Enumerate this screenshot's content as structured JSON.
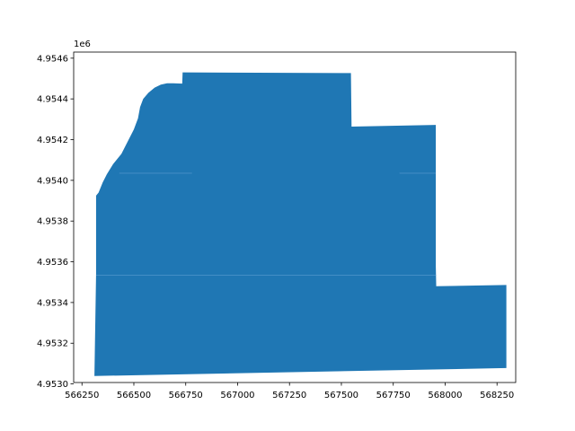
{
  "chart_data": {
    "type": "area",
    "title": "",
    "xlabel": "",
    "ylabel": "",
    "xlim": [
      566210,
      568340
    ],
    "ylim": [
      4953007,
      4954630
    ],
    "y_offset_label": "1e6",
    "y_tick_scale": 1000000,
    "xticks": [
      566250,
      566500,
      566750,
      567000,
      567250,
      567500,
      567750,
      568000,
      568250
    ],
    "yticks": [
      4953000,
      4953200,
      4953400,
      4953600,
      4953800,
      4954000,
      4954200,
      4954400,
      4954600
    ],
    "xtick_labels": [
      "566250",
      "566500",
      "566750",
      "567000",
      "567250",
      "567500",
      "567750",
      "568000",
      "568250"
    ],
    "ytick_labels": [
      "4.9530",
      "4.9532",
      "4.9534",
      "4.9536",
      "4.9538",
      "4.9540",
      "4.9542",
      "4.9544",
      "4.9546"
    ],
    "fill_color": "#1f77b4",
    "grid": false,
    "series": [
      {
        "values": [
          [
            566310,
            4953039
          ],
          [
            568295,
            4953078
          ],
          [
            568295,
            4953486
          ],
          [
            567957,
            4953480
          ],
          [
            567955,
            4953578
          ],
          [
            567955,
            4954272
          ],
          [
            567549,
            4954264
          ],
          [
            567546,
            4954527
          ],
          [
            566735,
            4954530
          ],
          [
            566733,
            4954475
          ],
          [
            566690,
            4954477
          ],
          [
            566660,
            4954477
          ],
          [
            566630,
            4954470
          ],
          [
            566600,
            4954455
          ],
          [
            566570,
            4954430
          ],
          [
            566545,
            4954400
          ],
          [
            566530,
            4954360
          ],
          [
            566520,
            4954305
          ],
          [
            566500,
            4954250
          ],
          [
            566470,
            4954190
          ],
          [
            566440,
            4954130
          ],
          [
            566400,
            4954080
          ],
          [
            566370,
            4954030
          ],
          [
            566350,
            4953990
          ],
          [
            566330,
            4953940
          ],
          [
            566318,
            4953925
          ],
          [
            566318,
            4953540
          ]
        ]
      }
    ],
    "internal_edges": [
      [
        [
          566318,
          4953535
        ],
        [
          567957,
          4953535
        ]
      ],
      [
        [
          566430,
          4954035
        ],
        [
          566780,
          4954035
        ]
      ],
      [
        [
          567780,
          4954035
        ],
        [
          567955,
          4954035
        ]
      ]
    ]
  }
}
